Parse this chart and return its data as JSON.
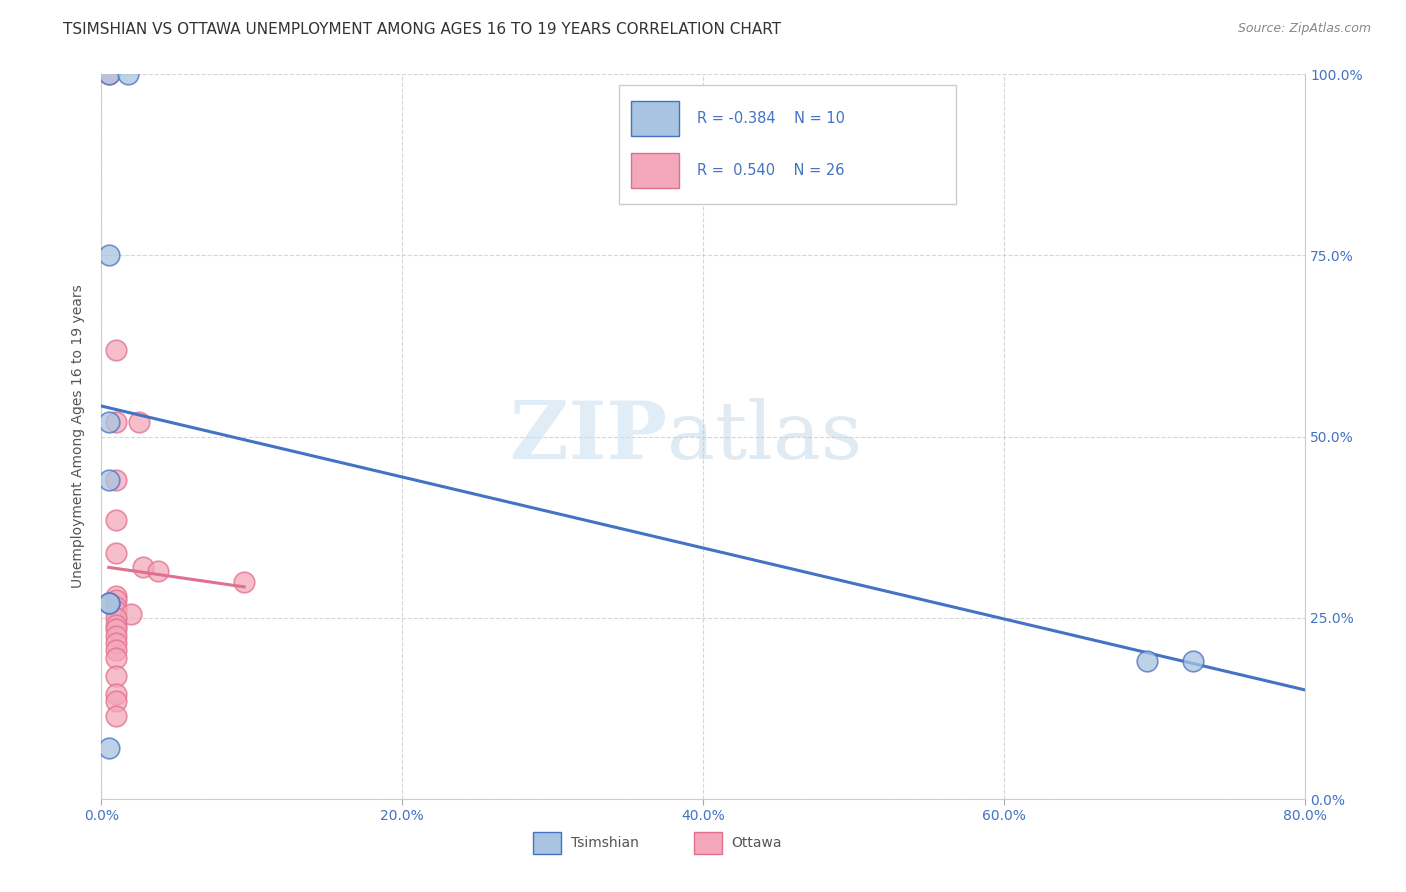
{
  "title": "TSIMSHIAN VS OTTAWA UNEMPLOYMENT AMONG AGES 16 TO 19 YEARS CORRELATION CHART",
  "source": "Source: ZipAtlas.com",
  "ylabel": "Unemployment Among Ages 16 to 19 years",
  "xlim": [
    0.0,
    0.8
  ],
  "ylim": [
    0.0,
    1.0
  ],
  "xticks": [
    0.0,
    0.2,
    0.4,
    0.6,
    0.8
  ],
  "yticks": [
    0.0,
    0.25,
    0.5,
    0.75,
    1.0
  ],
  "xticklabels": [
    "0.0%",
    "20.0%",
    "40.0%",
    "60.0%",
    "80.0%"
  ],
  "yticklabels": [
    "0.0%",
    "25.0%",
    "50.0%",
    "75.0%",
    "100.0%"
  ],
  "watermark_zip": "ZIP",
  "watermark_atlas": "atlas",
  "tsimshian_color": "#a8c4e0",
  "ottawa_color": "#f4a7b9",
  "tsimshian_line_color": "#4472c4",
  "ottawa_line_color": "#e07090",
  "tsimshian_R": -0.384,
  "tsimshian_N": 10,
  "ottawa_R": 0.54,
  "ottawa_N": 26,
  "tsimshian_points": [
    [
      0.005,
      1.0
    ],
    [
      0.018,
      1.0
    ],
    [
      0.005,
      0.75
    ],
    [
      0.005,
      0.52
    ],
    [
      0.005,
      0.44
    ],
    [
      0.005,
      0.27
    ],
    [
      0.005,
      0.27
    ],
    [
      0.695,
      0.19
    ],
    [
      0.725,
      0.19
    ],
    [
      0.005,
      0.07
    ]
  ],
  "ottawa_points": [
    [
      0.005,
      1.0
    ],
    [
      0.01,
      0.62
    ],
    [
      0.01,
      0.52
    ],
    [
      0.025,
      0.52
    ],
    [
      0.01,
      0.44
    ],
    [
      0.01,
      0.385
    ],
    [
      0.01,
      0.34
    ],
    [
      0.028,
      0.32
    ],
    [
      0.038,
      0.315
    ],
    [
      0.01,
      0.28
    ],
    [
      0.01,
      0.275
    ],
    [
      0.01,
      0.265
    ],
    [
      0.01,
      0.26
    ],
    [
      0.02,
      0.255
    ],
    [
      0.01,
      0.25
    ],
    [
      0.01,
      0.24
    ],
    [
      0.01,
      0.235
    ],
    [
      0.01,
      0.225
    ],
    [
      0.01,
      0.215
    ],
    [
      0.01,
      0.205
    ],
    [
      0.01,
      0.195
    ],
    [
      0.01,
      0.17
    ],
    [
      0.01,
      0.145
    ],
    [
      0.01,
      0.135
    ],
    [
      0.01,
      0.115
    ],
    [
      0.095,
      0.3
    ]
  ],
  "background_color": "#ffffff",
  "grid_color": "#cccccc",
  "tick_color": "#4472c4",
  "title_fontsize": 11,
  "axis_label_fontsize": 10,
  "tick_fontsize": 10
}
